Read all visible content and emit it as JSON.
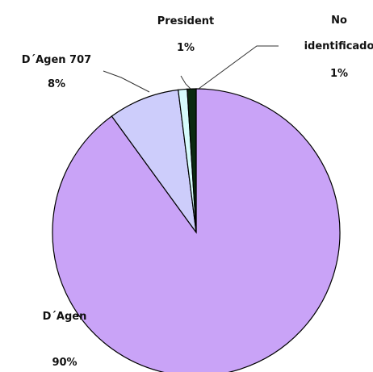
{
  "chart_data": {
    "type": "pie",
    "categories": [
      "D´Agen",
      "D´Agen 707",
      "President",
      "No identificado"
    ],
    "values": [
      90,
      8,
      1,
      1
    ],
    "value_labels": [
      "90%",
      "8%",
      "1%",
      "1%"
    ],
    "colors": [
      "#c9a3f7",
      "#cdcdfb",
      "#d6fbfb",
      "#0b2a10"
    ]
  }
}
